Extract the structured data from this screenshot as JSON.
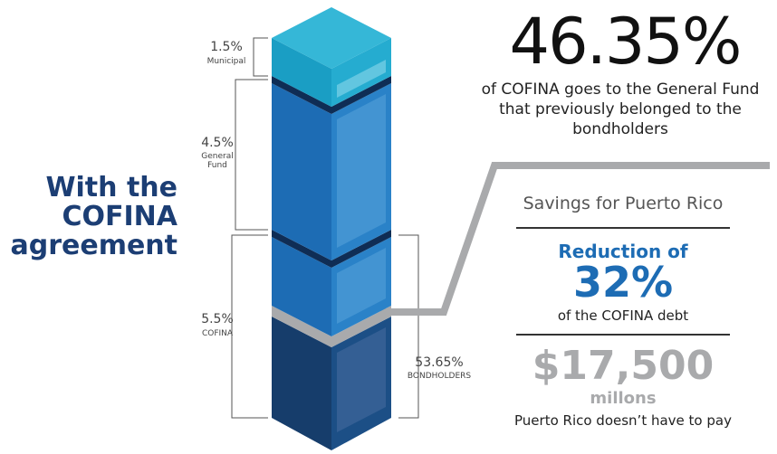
{
  "heading": "With the COFINA agreement",
  "segments": [
    {
      "percent": "1.5%",
      "label": "Municipal"
    },
    {
      "percent": "4.5%",
      "label": "General Fund"
    },
    {
      "percent": "5.5%",
      "label": "COFINA"
    },
    {
      "percent": "53.65%",
      "label": "BONDHOLDERS"
    }
  ],
  "headline": {
    "value": "46.35%",
    "text": "of COFINA goes to the General Fund that previously belonged to the bondholders"
  },
  "savings": {
    "title": "Savings for Puerto Rico",
    "reduction": {
      "label": "Reduction of",
      "value": "32%",
      "text": "of the COFINA debt"
    },
    "amount": {
      "value": "$17,500",
      "unit": "millons",
      "text": "Puerto Rico doesn’t have to pay"
    }
  }
}
